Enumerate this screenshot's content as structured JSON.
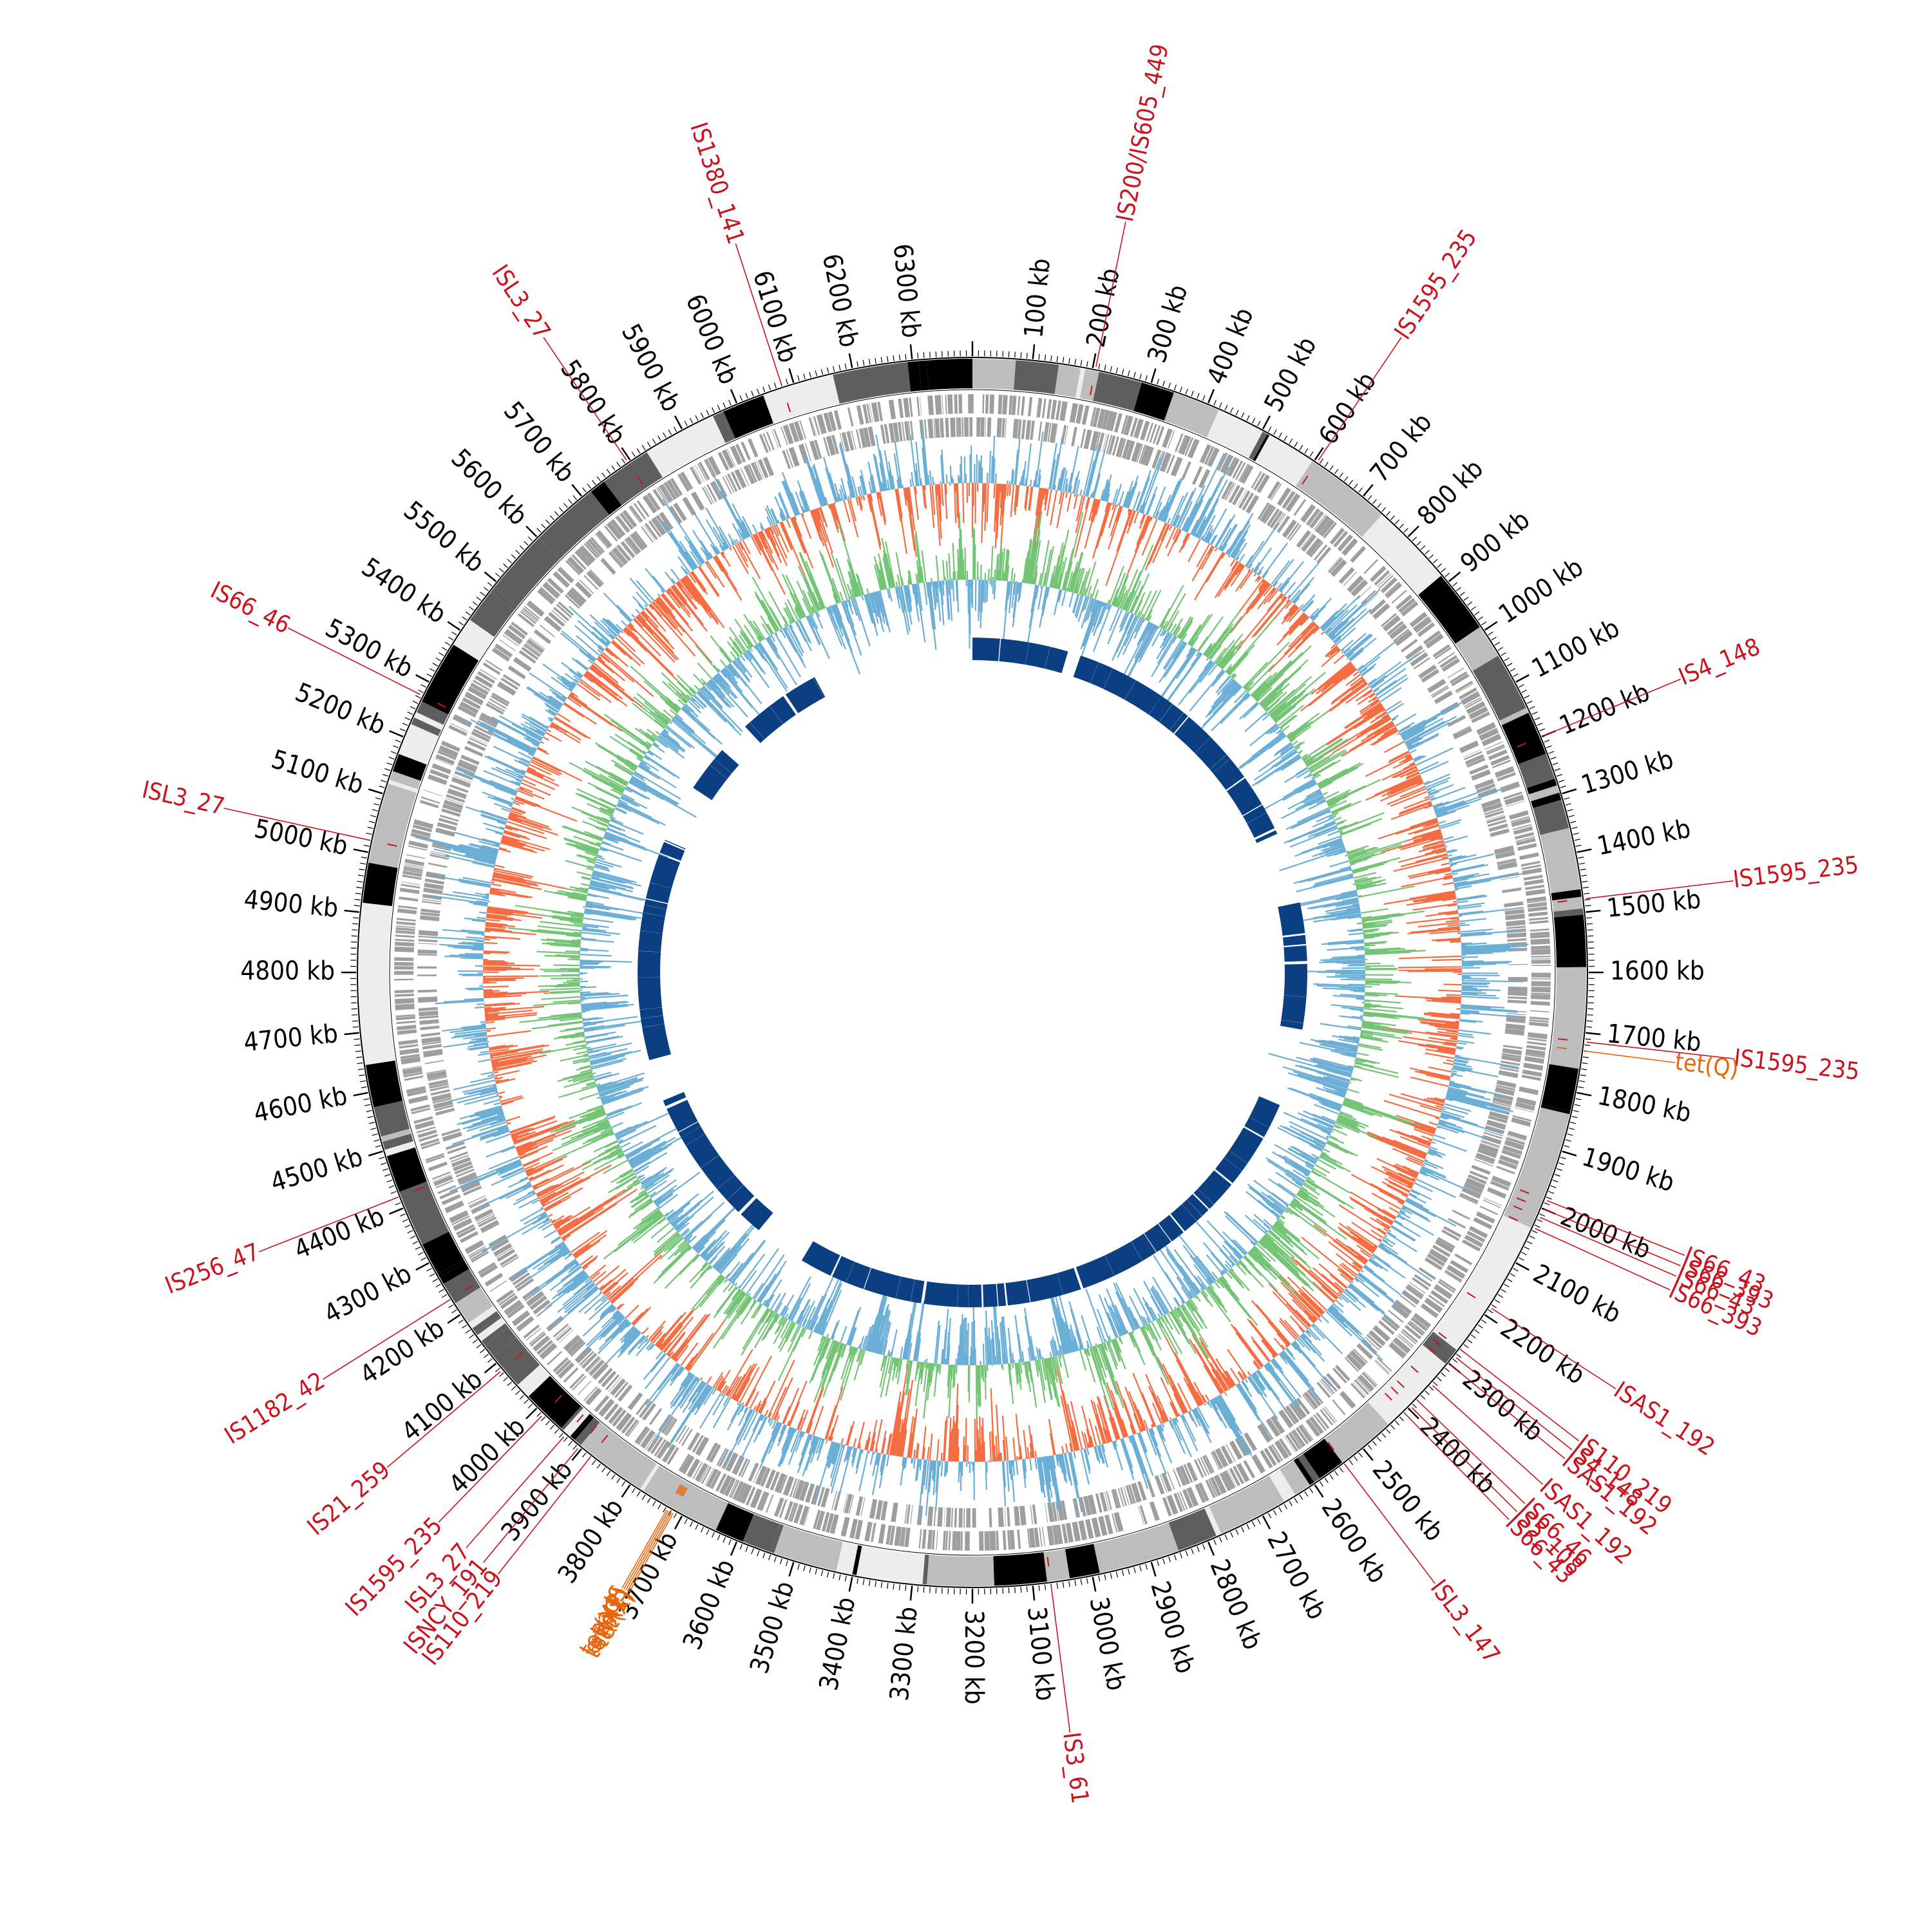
{
  "genome": {
    "length_kb": 6400,
    "tick_step_kb": 100,
    "tick_label_suffix": " kb",
    "first_label_kb": 100,
    "last_label_kb": 6300
  },
  "colors": {
    "is_elements": "#c8141e",
    "resistance_genes": "#e8650c",
    "gc_skew_positive": "#6baed6",
    "gc_skew_negative": "#f46d43",
    "gc_content_positive": "#74c476",
    "gc_content_negative": "#6baed6",
    "cds_ring": "#9e9e9e",
    "synteny_blocks": "#0c3f82",
    "contig_band_palette": [
      "#000000",
      "#5e5e5e",
      "#bdbdbd",
      "#ededed"
    ]
  },
  "is_elements": [
    {
      "label": "IS200/IS605_449",
      "kb": 205
    },
    {
      "label": "IS1595_235",
      "kb": 605
    },
    {
      "label": "IS4_148",
      "kb": 1200
    },
    {
      "label": "IS1595_235",
      "kb": 1478
    },
    {
      "label": "IS1595_235",
      "kb": 1715
    },
    {
      "label": "IS66_43",
      "kb": 1985
    },
    {
      "label": "IS66_393",
      "kb": 2000
    },
    {
      "label": "IS66_43",
      "kb": 2015
    },
    {
      "label": "IS66_393",
      "kb": 2035
    },
    {
      "label": "ISAS1_192",
      "kb": 2185
    },
    {
      "label": "IS110_219",
      "kb": 2270
    },
    {
      "label": "IS4_148",
      "kb": 2285
    },
    {
      "label": "ISAS1_192",
      "kb": 2300
    },
    {
      "label": "ISAS1_192",
      "kb": 2345
    },
    {
      "label": "IS66_46",
      "kb": 2380
    },
    {
      "label": "IS5_108",
      "kb": 2395
    },
    {
      "label": "IS66_43",
      "kb": 2410
    },
    {
      "label": "ISL3_147",
      "kb": 2540
    },
    {
      "label": "IS3_61",
      "kb": 3070
    },
    {
      "label": "IS110_219",
      "kb": 3880
    },
    {
      "label": "ISNCY_191",
      "kb": 3905
    },
    {
      "label": "ISL3_27",
      "kb": 3935
    },
    {
      "label": "IS1595_235",
      "kb": 3985
    },
    {
      "label": "IS21_259",
      "kb": 4085
    },
    {
      "label": "IS1182_42",
      "kb": 4230
    },
    {
      "label": "IS256_47",
      "kb": 4420
    },
    {
      "label": "ISL3_27",
      "kb": 5020
    },
    {
      "label": "IS66_46",
      "kb": 5275
    },
    {
      "label": "ISL3_27",
      "kb": 5795
    },
    {
      "label": "IS1380_141",
      "kb": 6080
    }
  ],
  "resistance_genes": [
    {
      "label": "tet(Q)",
      "kb": 1730
    },
    {
      "label": "tet(X)",
      "kb": 3715
    },
    {
      "label": "tet(X1)",
      "kb": 3718
    },
    {
      "label": "erm(F)",
      "kb": 3721
    },
    {
      "label": "tet(X2)",
      "kb": 3724
    },
    {
      "label": "aadS",
      "kb": 3727
    }
  ]
}
